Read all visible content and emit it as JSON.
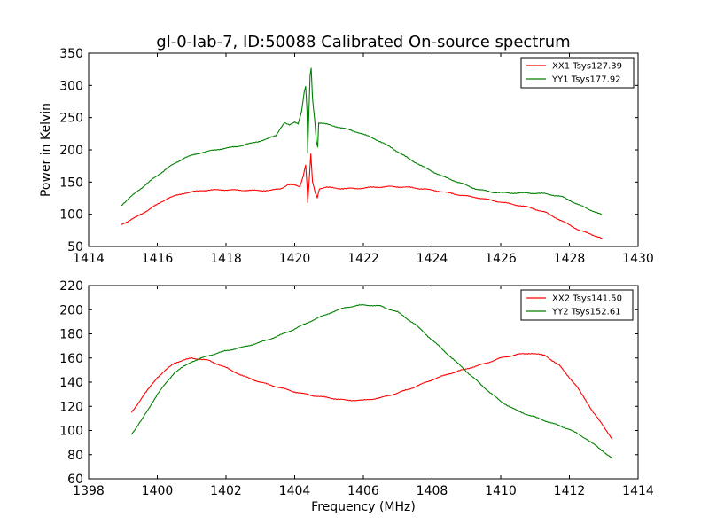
{
  "title": "gl-0-lab-7, ID:50088 Calibrated On-source spectrum",
  "colors": {
    "red": "#ff0000",
    "green": "#008000",
    "axes": "#000000",
    "background": "#ffffff"
  },
  "chart_data": [
    {
      "type": "line",
      "ylabel": "Power in Kelvin",
      "xlabel": "",
      "xlim": [
        1414,
        1430
      ],
      "ylim": [
        50,
        350
      ],
      "xticks": [
        1414,
        1416,
        1418,
        1420,
        1422,
        1424,
        1426,
        1428,
        1430
      ],
      "yticks": [
        50,
        100,
        150,
        200,
        250,
        300,
        350
      ],
      "legend": "top-right",
      "series": [
        {
          "name": "XX1 Tsys127.39",
          "color": "#ff0000",
          "points": [
            [
              1414.95,
              84
            ],
            [
              1415.4,
              96
            ],
            [
              1415.9,
              112
            ],
            [
              1416.3,
              125
            ],
            [
              1416.8,
              133
            ],
            [
              1417.3,
              137
            ],
            [
              1417.8,
              138
            ],
            [
              1418.3,
              137.5
            ],
            [
              1418.8,
              137
            ],
            [
              1419.3,
              137
            ],
            [
              1419.6,
              140
            ],
            [
              1419.8,
              146
            ],
            [
              1420.0,
              145
            ],
            [
              1420.15,
              143
            ],
            [
              1420.25,
              160
            ],
            [
              1420.32,
              177
            ],
            [
              1420.36,
              145
            ],
            [
              1420.38,
              118
            ],
            [
              1420.42,
              150
            ],
            [
              1420.47,
              193
            ],
            [
              1420.52,
              150
            ],
            [
              1420.6,
              133
            ],
            [
              1420.66,
              126
            ],
            [
              1420.72,
              140
            ],
            [
              1420.9,
              142
            ],
            [
              1421.3,
              140
            ],
            [
              1421.8,
              140
            ],
            [
              1422.3,
              142
            ],
            [
              1422.8,
              143
            ],
            [
              1423.3,
              142
            ],
            [
              1423.8,
              139
            ],
            [
              1424.3,
              135
            ],
            [
              1424.8,
              130
            ],
            [
              1425.3,
              126
            ],
            [
              1425.8,
              121
            ],
            [
              1426.3,
              116
            ],
            [
              1426.8,
              111
            ],
            [
              1427.3,
              103
            ],
            [
              1427.8,
              89
            ],
            [
              1428.3,
              75
            ],
            [
              1428.95,
              63
            ]
          ]
        },
        {
          "name": "YY1 Tsys177.92",
          "color": "#008000",
          "points": [
            [
              1414.95,
              114
            ],
            [
              1415.4,
              135
            ],
            [
              1415.9,
              156
            ],
            [
              1416.3,
              172
            ],
            [
              1416.8,
              188
            ],
            [
              1417.3,
              196
            ],
            [
              1417.8,
              201
            ],
            [
              1418.3,
              205
            ],
            [
              1418.8,
              211
            ],
            [
              1419.2,
              217
            ],
            [
              1419.45,
              222
            ],
            [
              1419.6,
              235
            ],
            [
              1419.7,
              242
            ],
            [
              1419.85,
              238
            ],
            [
              1420.0,
              243
            ],
            [
              1420.1,
              241
            ],
            [
              1420.2,
              260
            ],
            [
              1420.28,
              290
            ],
            [
              1420.32,
              298
            ],
            [
              1420.36,
              260
            ],
            [
              1420.38,
              194
            ],
            [
              1420.4,
              235
            ],
            [
              1420.45,
              315
            ],
            [
              1420.48,
              327
            ],
            [
              1420.52,
              280
            ],
            [
              1420.58,
              248
            ],
            [
              1420.63,
              215
            ],
            [
              1420.67,
              205
            ],
            [
              1420.7,
              242
            ],
            [
              1420.9,
              240
            ],
            [
              1421.3,
              235
            ],
            [
              1421.8,
              228
            ],
            [
              1422.3,
              218
            ],
            [
              1422.8,
              204
            ],
            [
              1423.3,
              187
            ],
            [
              1423.8,
              172
            ],
            [
              1424.3,
              159
            ],
            [
              1424.8,
              149
            ],
            [
              1425.3,
              139
            ],
            [
              1425.8,
              134
            ],
            [
              1426.3,
              133
            ],
            [
              1426.8,
              133
            ],
            [
              1427.3,
              132
            ],
            [
              1427.8,
              127
            ],
            [
              1428.3,
              114
            ],
            [
              1428.95,
              99
            ]
          ]
        }
      ]
    },
    {
      "type": "line",
      "ylabel": "",
      "xlabel": "Frequency (MHz)",
      "xlim": [
        1398,
        1414
      ],
      "ylim": [
        60,
        220
      ],
      "xticks": [
        1398,
        1400,
        1402,
        1404,
        1406,
        1408,
        1410,
        1412,
        1414
      ],
      "yticks": [
        60,
        80,
        100,
        120,
        140,
        160,
        180,
        200,
        220
      ],
      "legend": "top-right",
      "series": [
        {
          "name": "XX2 Tsys141.50",
          "color": "#ff0000",
          "points": [
            [
              1399.25,
              115
            ],
            [
              1399.6,
              129
            ],
            [
              1400.0,
              144
            ],
            [
              1400.5,
              156
            ],
            [
              1401.0,
              160
            ],
            [
              1401.5,
              158
            ],
            [
              1402.0,
              152
            ],
            [
              1402.5,
              145
            ],
            [
              1403.0,
              140
            ],
            [
              1403.5,
              136
            ],
            [
              1404.0,
              132
            ],
            [
              1404.5,
              129
            ],
            [
              1405.0,
              127
            ],
            [
              1405.5,
              125
            ],
            [
              1406.0,
              125
            ],
            [
              1406.5,
              127
            ],
            [
              1407.0,
              131
            ],
            [
              1407.5,
              136
            ],
            [
              1408.0,
              142
            ],
            [
              1408.5,
              147
            ],
            [
              1409.0,
              151
            ],
            [
              1409.5,
              155
            ],
            [
              1410.0,
              160
            ],
            [
              1410.5,
              163
            ],
            [
              1410.9,
              164
            ],
            [
              1411.3,
              162
            ],
            [
              1411.7,
              154
            ],
            [
              1412.2,
              137
            ],
            [
              1412.7,
              115
            ],
            [
              1413.25,
              93
            ]
          ]
        },
        {
          "name": "YY2 Tsys152.61",
          "color": "#008000",
          "points": [
            [
              1399.25,
              97
            ],
            [
              1399.6,
              111
            ],
            [
              1400.0,
              130
            ],
            [
              1400.5,
              148
            ],
            [
              1401.0,
              157
            ],
            [
              1401.5,
              162
            ],
            [
              1402.0,
              166
            ],
            [
              1402.5,
              169
            ],
            [
              1403.0,
              173
            ],
            [
              1403.5,
              178
            ],
            [
              1404.0,
              184
            ],
            [
              1404.5,
              191
            ],
            [
              1405.0,
              197
            ],
            [
              1405.5,
              202
            ],
            [
              1406.0,
              204
            ],
            [
              1406.5,
              203
            ],
            [
              1407.0,
              198
            ],
            [
              1407.5,
              188
            ],
            [
              1408.0,
              175
            ],
            [
              1408.5,
              162
            ],
            [
              1409.0,
              149
            ],
            [
              1409.5,
              136
            ],
            [
              1410.0,
              124
            ],
            [
              1410.5,
              116
            ],
            [
              1411.0,
              111
            ],
            [
              1411.5,
              106
            ],
            [
              1412.0,
              101
            ],
            [
              1412.5,
              93
            ],
            [
              1413.25,
              77
            ]
          ]
        }
      ]
    }
  ]
}
